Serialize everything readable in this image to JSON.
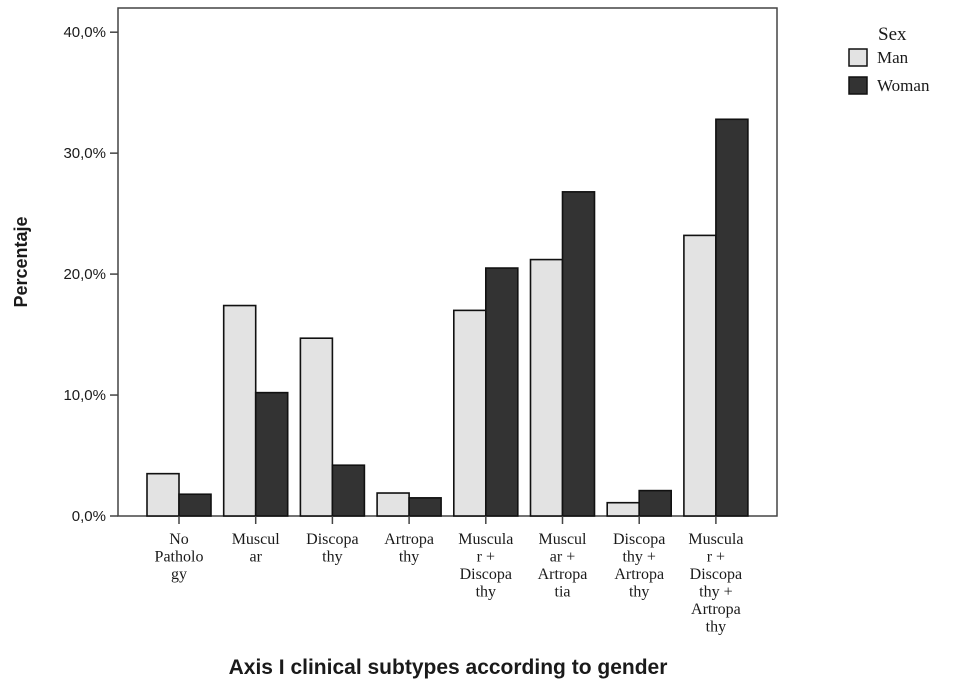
{
  "chart_data": {
    "type": "bar",
    "xlabel": "Axis I clinical subtypes according to gender",
    "ylabel": "Percentaje",
    "ylim": [
      0,
      42
    ],
    "yticks": [
      0,
      10,
      20,
      30,
      40
    ],
    "ytick_labels": [
      "0,0%",
      "10,0%",
      "20,0%",
      "30,0%",
      "40,0%"
    ],
    "grid": false,
    "legend_position": "top-right, outside plot",
    "legend_title": "Sex",
    "categories": [
      [
        "No",
        "Patholo",
        "gy"
      ],
      [
        "Muscul",
        "ar"
      ],
      [
        "Discopa",
        "thy"
      ],
      [
        "Artropa",
        "thy"
      ],
      [
        "Muscula",
        "r +",
        "Discopa",
        "thy"
      ],
      [
        "Muscul",
        "ar +",
        "Artropa",
        "tia"
      ],
      [
        "Discopa",
        "thy +",
        "Artropa",
        "thy"
      ],
      [
        "Muscula",
        "r +",
        "Discopa",
        "thy +",
        "Artropa",
        "thy"
      ]
    ],
    "series": [
      {
        "name": "Man",
        "color": "#e3e3e3",
        "values": [
          3.5,
          17.4,
          14.7,
          1.9,
          17.0,
          21.2,
          1.1,
          23.2
        ]
      },
      {
        "name": "Woman",
        "color": "#333333",
        "values": [
          1.8,
          10.2,
          4.2,
          1.5,
          20.5,
          26.8,
          2.1,
          32.8
        ]
      }
    ]
  }
}
